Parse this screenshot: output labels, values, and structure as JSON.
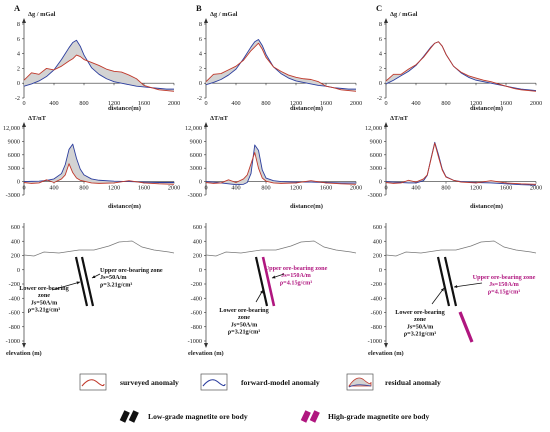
{
  "figure": {
    "panels": [
      {
        "letter": "A"
      },
      {
        "letter": "B"
      },
      {
        "letter": "C"
      }
    ],
    "gravity_axis": {
      "ylabel": "Δg / mGal",
      "xlabel": "distance(m)",
      "yticks": [
        "8",
        "6",
        "4",
        "2",
        "0",
        "-2"
      ],
      "xticks": [
        "0",
        "400",
        "800",
        "1200",
        "1600",
        "2000"
      ]
    },
    "magnetic_axis": {
      "ylabel": "ΔT/nT",
      "xlabel": "distance(m)",
      "yticks": [
        "12,000",
        "9000",
        "6000",
        "3000",
        "0",
        "-3000"
      ],
      "xticks": [
        "0",
        "400",
        "800",
        "1200",
        "1600",
        "2000"
      ]
    },
    "elevation_axis": {
      "ylabel": "elevation (m)",
      "yticks": [
        "600",
        "400",
        "200",
        "0",
        "-200",
        "-400",
        "-600",
        "-800",
        "-1000"
      ]
    },
    "annotations": {
      "upper_zone_A": [
        "Upper ore-bearing zone",
        "Js=50A/m",
        "ρ=3.21g/cm³"
      ],
      "upper_zone_hi": [
        "Upper ore-bearing zone",
        "Js=150A/m",
        "ρ=4.15g/cm³"
      ],
      "lower_zone_lo": [
        "Lower ore-bearing",
        "zone",
        "Js=50A/m",
        "ρ=3.21g/cm³"
      ]
    },
    "legend": {
      "surveyed": "surveyed anomaly",
      "forward": "forward-model anomaly",
      "residual": "residual anomaly",
      "low_grade": "Low-grade magnetite ore body",
      "high_grade": "High-grade magnetite ore body"
    },
    "colors": {
      "surveyed": "#c0392b",
      "forward": "#2c3e9e",
      "residual_fill": "#d3d3d3",
      "low_grade": "#111111",
      "high_grade": "#b0167f"
    }
  },
  "chart_data": [
    {
      "type": "line",
      "panel": "A",
      "kind": "gravity",
      "ylabel": "Δg / mGal",
      "xlabel": "distance(m)",
      "xlim": [
        0,
        2000
      ],
      "ylim": [
        -2,
        8
      ],
      "series": [
        {
          "name": "surveyed anomaly",
          "x": [
            0,
            100,
            200,
            300,
            400,
            500,
            600,
            650,
            700,
            750,
            800,
            900,
            1000,
            1100,
            1200,
            1300,
            1400,
            1500,
            1600,
            1700,
            1800,
            1900,
            2000
          ],
          "y": [
            0.4,
            1.4,
            1.2,
            2.0,
            1.8,
            2.3,
            3.0,
            3.3,
            3.8,
            3.6,
            3.2,
            2.8,
            2.4,
            1.9,
            1.6,
            1.5,
            1.1,
            0.6,
            -0.3,
            -0.6,
            -0.9,
            -1.0,
            -1.1
          ]
        },
        {
          "name": "forward-model anomaly",
          "x": [
            0,
            100,
            200,
            300,
            400,
            500,
            600,
            650,
            700,
            750,
            800,
            900,
            1000,
            1100,
            1200,
            1300,
            1400,
            1500,
            1600,
            1700,
            1800,
            1900,
            2000
          ],
          "y": [
            -0.4,
            -0.1,
            0.3,
            0.9,
            1.8,
            3.2,
            4.8,
            5.5,
            5.8,
            5.0,
            3.8,
            2.1,
            1.2,
            0.6,
            0.2,
            0.0,
            -0.2,
            -0.4,
            -0.5,
            -0.6,
            -0.7,
            -0.8,
            -0.8
          ]
        }
      ],
      "residual": true
    },
    {
      "type": "line",
      "panel": "B",
      "kind": "gravity",
      "xlim": [
        0,
        2000
      ],
      "ylim": [
        -2,
        8
      ],
      "series": [
        {
          "name": "surveyed anomaly",
          "x": [
            0,
            100,
            200,
            300,
            400,
            500,
            600,
            650,
            700,
            750,
            800,
            900,
            1000,
            1100,
            1200,
            1300,
            1400,
            1500,
            1600,
            1700,
            1800,
            1900,
            2000
          ],
          "y": [
            0.2,
            1.2,
            1.3,
            1.8,
            2.3,
            3.1,
            4.4,
            4.9,
            5.4,
            4.6,
            3.5,
            2.2,
            1.6,
            1.1,
            0.8,
            0.6,
            0.5,
            0.2,
            -0.4,
            -0.6,
            -0.9,
            -1.0,
            -1.1
          ]
        },
        {
          "name": "forward-model anomaly",
          "x": [
            0,
            100,
            200,
            300,
            400,
            500,
            600,
            650,
            700,
            750,
            800,
            900,
            1000,
            1100,
            1200,
            1300,
            1400,
            1500,
            1600,
            1700,
            1800,
            1900,
            2000
          ],
          "y": [
            -0.2,
            0.1,
            0.5,
            1.1,
            1.9,
            3.3,
            4.9,
            5.6,
            5.9,
            5.1,
            3.9,
            2.2,
            1.3,
            0.7,
            0.3,
            0.1,
            -0.1,
            -0.3,
            -0.4,
            -0.6,
            -0.7,
            -0.8,
            -0.8
          ]
        }
      ],
      "residual": true
    },
    {
      "type": "line",
      "panel": "C",
      "kind": "gravity",
      "xlim": [
        0,
        2000
      ],
      "ylim": [
        -2,
        8
      ],
      "series": [
        {
          "name": "surveyed anomaly",
          "x": [
            0,
            100,
            200,
            300,
            400,
            500,
            600,
            650,
            700,
            750,
            800,
            900,
            1000,
            1100,
            1200,
            1300,
            1400,
            1500,
            1600,
            1700,
            1800,
            1900,
            2000
          ],
          "y": [
            0.3,
            1.2,
            1.2,
            1.9,
            2.5,
            3.5,
            4.8,
            5.4,
            5.6,
            5.0,
            3.9,
            2.3,
            1.5,
            1.0,
            0.7,
            0.4,
            0.2,
            -0.1,
            -0.4,
            -0.7,
            -0.9,
            -1.0,
            -1.1
          ]
        },
        {
          "name": "forward-model anomaly",
          "x": [
            0,
            100,
            200,
            300,
            400,
            500,
            600,
            650,
            700,
            750,
            800,
            900,
            1000,
            1100,
            1200,
            1300,
            1400,
            1500,
            1600,
            1700,
            1800,
            1900,
            2000
          ],
          "y": [
            -0.1,
            0.4,
            1.0,
            1.6,
            2.4,
            3.6,
            4.9,
            5.4,
            5.6,
            5.0,
            3.9,
            2.3,
            1.4,
            0.8,
            0.4,
            0.2,
            0.0,
            -0.2,
            -0.4,
            -0.6,
            -0.8,
            -0.9,
            -1.0
          ]
        }
      ],
      "residual": true
    },
    {
      "type": "line",
      "panel": "A",
      "kind": "magnetic",
      "ylabel": "ΔT/nT",
      "xlabel": "distance(m)",
      "xlim": [
        0,
        2000
      ],
      "ylim": [
        -3000,
        12000
      ],
      "series": [
        {
          "name": "surveyed anomaly",
          "x": [
            0,
            100,
            200,
            300,
            400,
            500,
            550,
            600,
            650,
            700,
            750,
            800,
            900,
            1000,
            1200,
            1400,
            1600,
            1800,
            2000
          ],
          "y": [
            -200,
            -400,
            -300,
            400,
            -200,
            600,
            1500,
            4000,
            2000,
            800,
            300,
            100,
            -300,
            -400,
            -300,
            200,
            -300,
            -500,
            -600
          ]
        },
        {
          "name": "forward-model anomaly",
          "x": [
            0,
            100,
            200,
            300,
            400,
            500,
            550,
            600,
            650,
            700,
            750,
            800,
            900,
            1000,
            1200,
            1400,
            1600,
            1800,
            2000
          ],
          "y": [
            0,
            50,
            100,
            250,
            600,
            1800,
            3800,
            7200,
            8400,
            5200,
            2800,
            1500,
            600,
            300,
            100,
            0,
            -100,
            -200,
            -200
          ]
        }
      ],
      "residual": true
    },
    {
      "type": "line",
      "panel": "B",
      "kind": "magnetic",
      "xlim": [
        0,
        2000
      ],
      "ylim": [
        -3000,
        12000
      ],
      "series": [
        {
          "name": "surveyed anomaly",
          "x": [
            0,
            100,
            200,
            300,
            400,
            500,
            550,
            600,
            650,
            700,
            750,
            800,
            900,
            1000,
            1200,
            1400,
            1600,
            1800,
            2000
          ],
          "y": [
            -200,
            -400,
            -300,
            400,
            -200,
            600,
            1500,
            4000,
            6500,
            3000,
            800,
            100,
            -300,
            -400,
            -300,
            200,
            -300,
            -500,
            -600
          ]
        },
        {
          "name": "forward-model anomaly",
          "x": [
            0,
            100,
            200,
            300,
            400,
            500,
            550,
            600,
            650,
            700,
            750,
            800,
            900,
            1000,
            1200,
            1400,
            1600,
            1800,
            2000
          ],
          "y": [
            0,
            -100,
            -300,
            -500,
            -700,
            -600,
            -200,
            1800,
            8200,
            7000,
            2600,
            800,
            200,
            0,
            -100,
            -100,
            -200,
            -300,
            -300
          ]
        }
      ],
      "residual": true
    },
    {
      "type": "line",
      "panel": "C",
      "kind": "magnetic",
      "xlim": [
        0,
        2000
      ],
      "ylim": [
        -3000,
        12000
      ],
      "series": [
        {
          "name": "surveyed anomaly",
          "x": [
            0,
            100,
            200,
            300,
            400,
            500,
            550,
            600,
            650,
            700,
            750,
            800,
            900,
            1000,
            1200,
            1400,
            1600,
            1800,
            2000
          ],
          "y": [
            -200,
            -400,
            -300,
            300,
            -100,
            600,
            1500,
            5000,
            8600,
            5500,
            2600,
            1000,
            300,
            -100,
            -300,
            200,
            -300,
            -500,
            -600
          ]
        },
        {
          "name": "forward-model anomaly",
          "x": [
            0,
            100,
            200,
            300,
            400,
            500,
            550,
            600,
            650,
            700,
            750,
            800,
            900,
            1000,
            1200,
            1400,
            1600,
            1800,
            2000
          ],
          "y": [
            0,
            -100,
            -200,
            -300,
            -300,
            200,
            1400,
            5200,
            8800,
            6000,
            2800,
            1100,
            300,
            0,
            -200,
            -300,
            -500,
            -700,
            -800
          ]
        }
      ],
      "residual": true
    }
  ]
}
